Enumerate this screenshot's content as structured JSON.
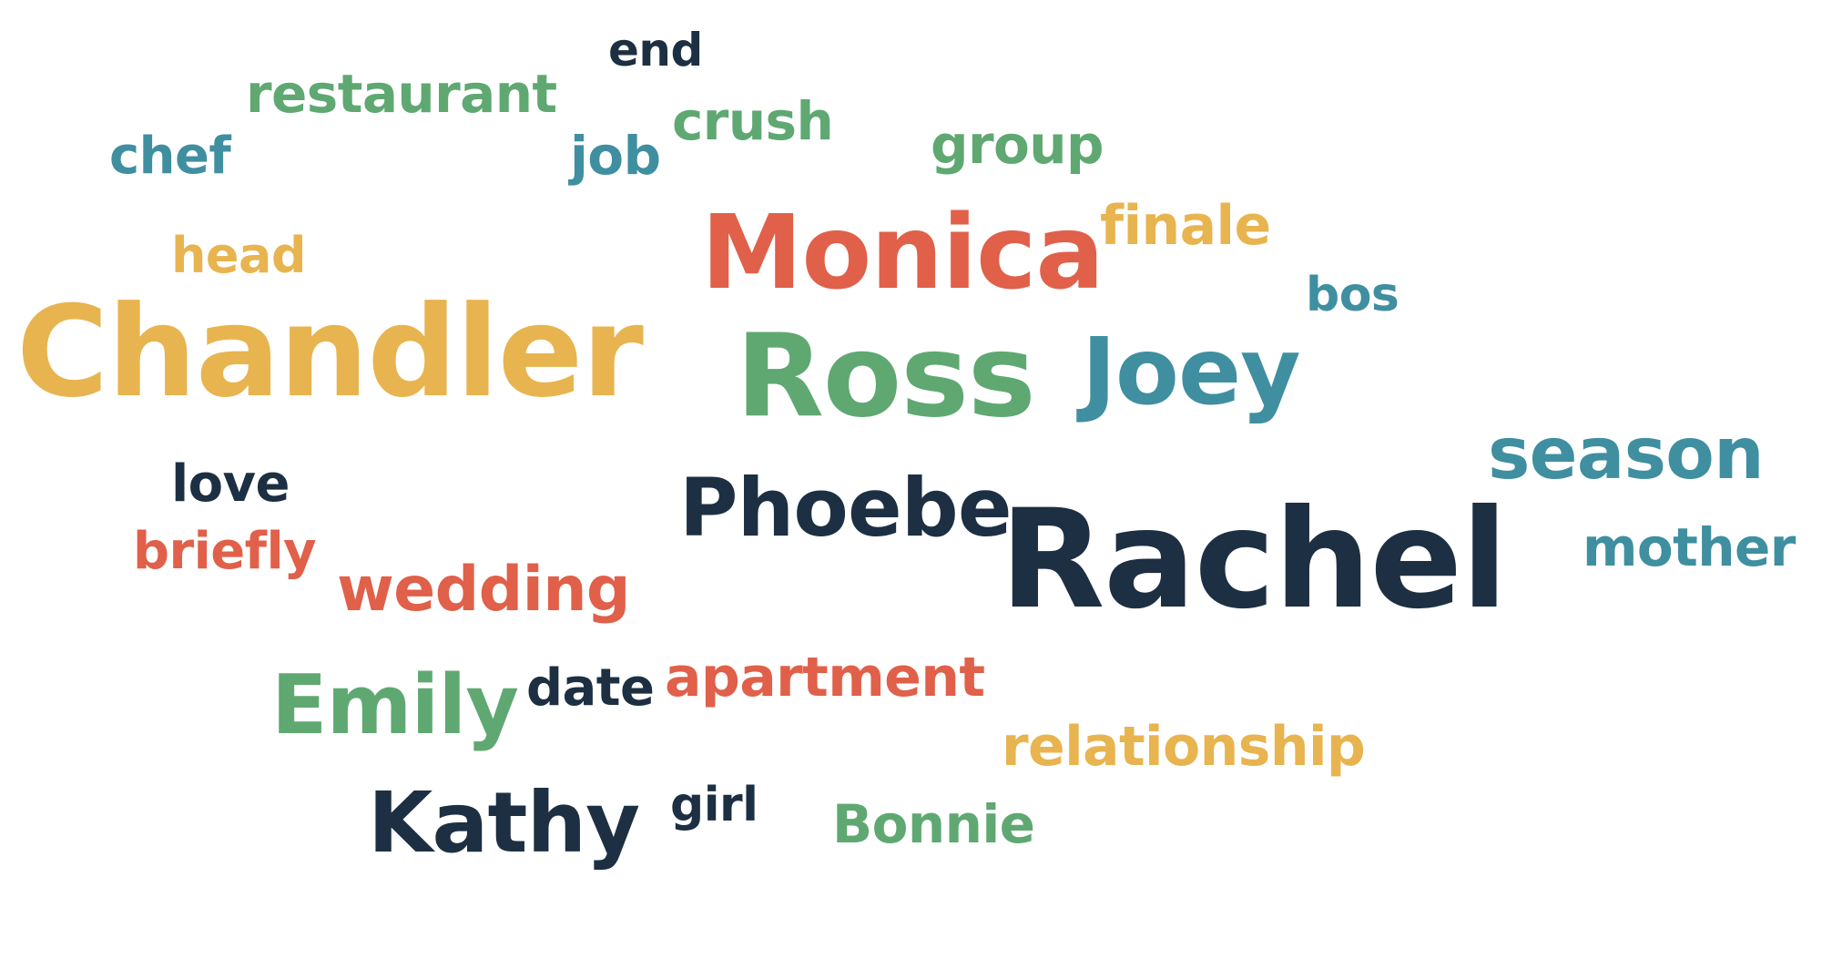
{
  "palette": {
    "orange": "#E0604A",
    "yellow": "#E8B44F",
    "green": "#5FA872",
    "teal": "#3F8FA0",
    "navy": "#1D2F42"
  },
  "words": [
    {
      "text": "Rachel",
      "color": "navy"
    },
    {
      "text": "Chandler",
      "color": "yellow"
    },
    {
      "text": "Ross",
      "color": "green"
    },
    {
      "text": "Monica",
      "color": "orange"
    },
    {
      "text": "Joey",
      "color": "teal"
    },
    {
      "text": "Phoebe",
      "color": "navy"
    },
    {
      "text": "Kathy",
      "color": "navy"
    },
    {
      "text": "Emily",
      "color": "green"
    },
    {
      "text": "season",
      "color": "teal"
    },
    {
      "text": "wedding",
      "color": "orange"
    },
    {
      "text": "apartment",
      "color": "orange"
    },
    {
      "text": "relationship",
      "color": "yellow"
    },
    {
      "text": "mother",
      "color": "teal"
    },
    {
      "text": "finale",
      "color": "yellow"
    },
    {
      "text": "restaurant",
      "color": "green"
    },
    {
      "text": "group",
      "color": "green"
    },
    {
      "text": "crush",
      "color": "green"
    },
    {
      "text": "Bonnie",
      "color": "green"
    },
    {
      "text": "head",
      "color": "yellow"
    },
    {
      "text": "briefly",
      "color": "orange"
    },
    {
      "text": "love",
      "color": "navy"
    },
    {
      "text": "date",
      "color": "navy"
    },
    {
      "text": "chef",
      "color": "teal"
    },
    {
      "text": "job",
      "color": "teal"
    },
    {
      "text": "bos",
      "color": "teal"
    },
    {
      "text": "girl",
      "color": "navy"
    },
    {
      "text": "end",
      "color": "navy"
    }
  ]
}
